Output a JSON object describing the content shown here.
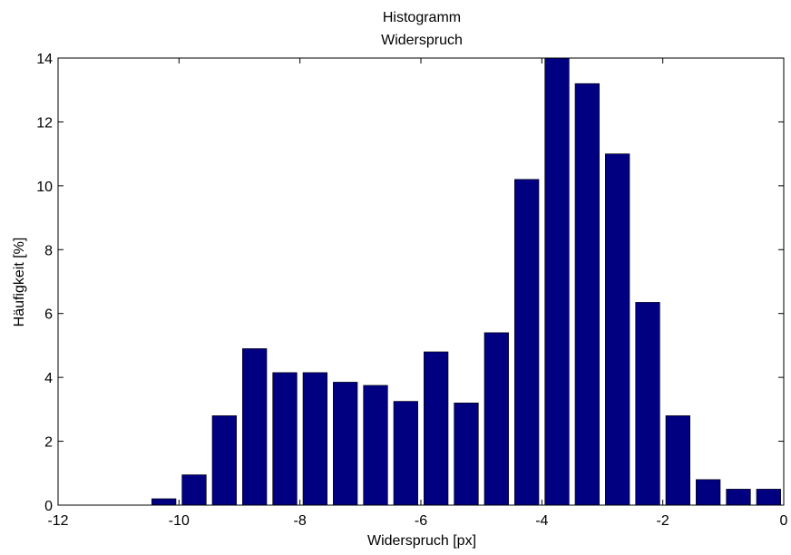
{
  "chart_data": {
    "type": "bar",
    "title": "Histogramm",
    "subtitle": "Widerspruch",
    "xlabel": "Widerspruch [px]",
    "ylabel": "Häufigkeit [%]",
    "xlim": [
      -12,
      0
    ],
    "ylim": [
      0,
      14
    ],
    "xticks": [
      "-12",
      "-10",
      "-8",
      "-6",
      "-4",
      "-2",
      "0"
    ],
    "yticks": [
      "0",
      "2",
      "4",
      "6",
      "8",
      "10",
      "12",
      "14"
    ],
    "grid": false,
    "bar_color": "#000080",
    "x": [
      -10.25,
      -9.75,
      -9.25,
      -8.75,
      -8.25,
      -7.75,
      -7.25,
      -6.75,
      -6.25,
      -5.75,
      -5.25,
      -4.75,
      -4.25,
      -3.75,
      -3.25,
      -2.75,
      -2.25,
      -1.75,
      -1.25,
      -0.75,
      -0.25
    ],
    "values": [
      0.2,
      0.95,
      2.8,
      4.9,
      4.15,
      4.15,
      3.85,
      3.75,
      3.25,
      4.8,
      3.2,
      5.4,
      10.2,
      14.0,
      13.2,
      11.0,
      6.35,
      2.8,
      0.8,
      0.5,
      0.5
    ]
  }
}
